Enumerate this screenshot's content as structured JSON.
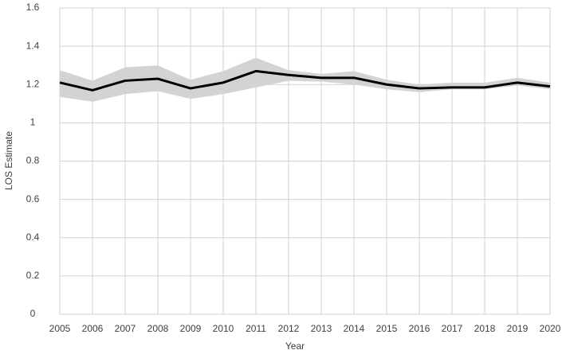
{
  "chart_data": {
    "type": "line",
    "x_label": "Year",
    "y_label": "LOS Estimate",
    "x": [
      2005,
      2006,
      2007,
      2008,
      2009,
      2010,
      2011,
      2012,
      2013,
      2014,
      2015,
      2016,
      2017,
      2018,
      2019,
      2020
    ],
    "series": [
      {
        "color": "#000000",
        "values": [
          1.21,
          1.17,
          1.22,
          1.23,
          1.18,
          1.21,
          1.27,
          1.25,
          1.235,
          1.235,
          1.2,
          1.18,
          1.185,
          1.185,
          1.21,
          1.19
        ]
      }
    ],
    "band": {
      "color": "#d3d3d3",
      "lower": [
        1.135,
        1.11,
        1.15,
        1.165,
        1.125,
        1.15,
        1.185,
        1.22,
        1.215,
        1.2,
        1.175,
        1.16,
        1.175,
        1.175,
        1.195,
        1.175
      ],
      "upper": [
        1.275,
        1.22,
        1.29,
        1.3,
        1.225,
        1.27,
        1.34,
        1.275,
        1.255,
        1.27,
        1.225,
        1.2,
        1.21,
        1.21,
        1.235,
        1.21
      ]
    },
    "xlim": [
      2005,
      2020
    ],
    "xticks": [
      2005,
      2006,
      2007,
      2008,
      2009,
      2010,
      2011,
      2012,
      2013,
      2014,
      2015,
      2016,
      2017,
      2018,
      2019,
      2020
    ],
    "ylim": [
      0,
      1.6
    ],
    "yticks": [
      0,
      0.2,
      0.4,
      0.6,
      0.8,
      1,
      1.2,
      1.4,
      1.6
    ],
    "grid": true
  }
}
